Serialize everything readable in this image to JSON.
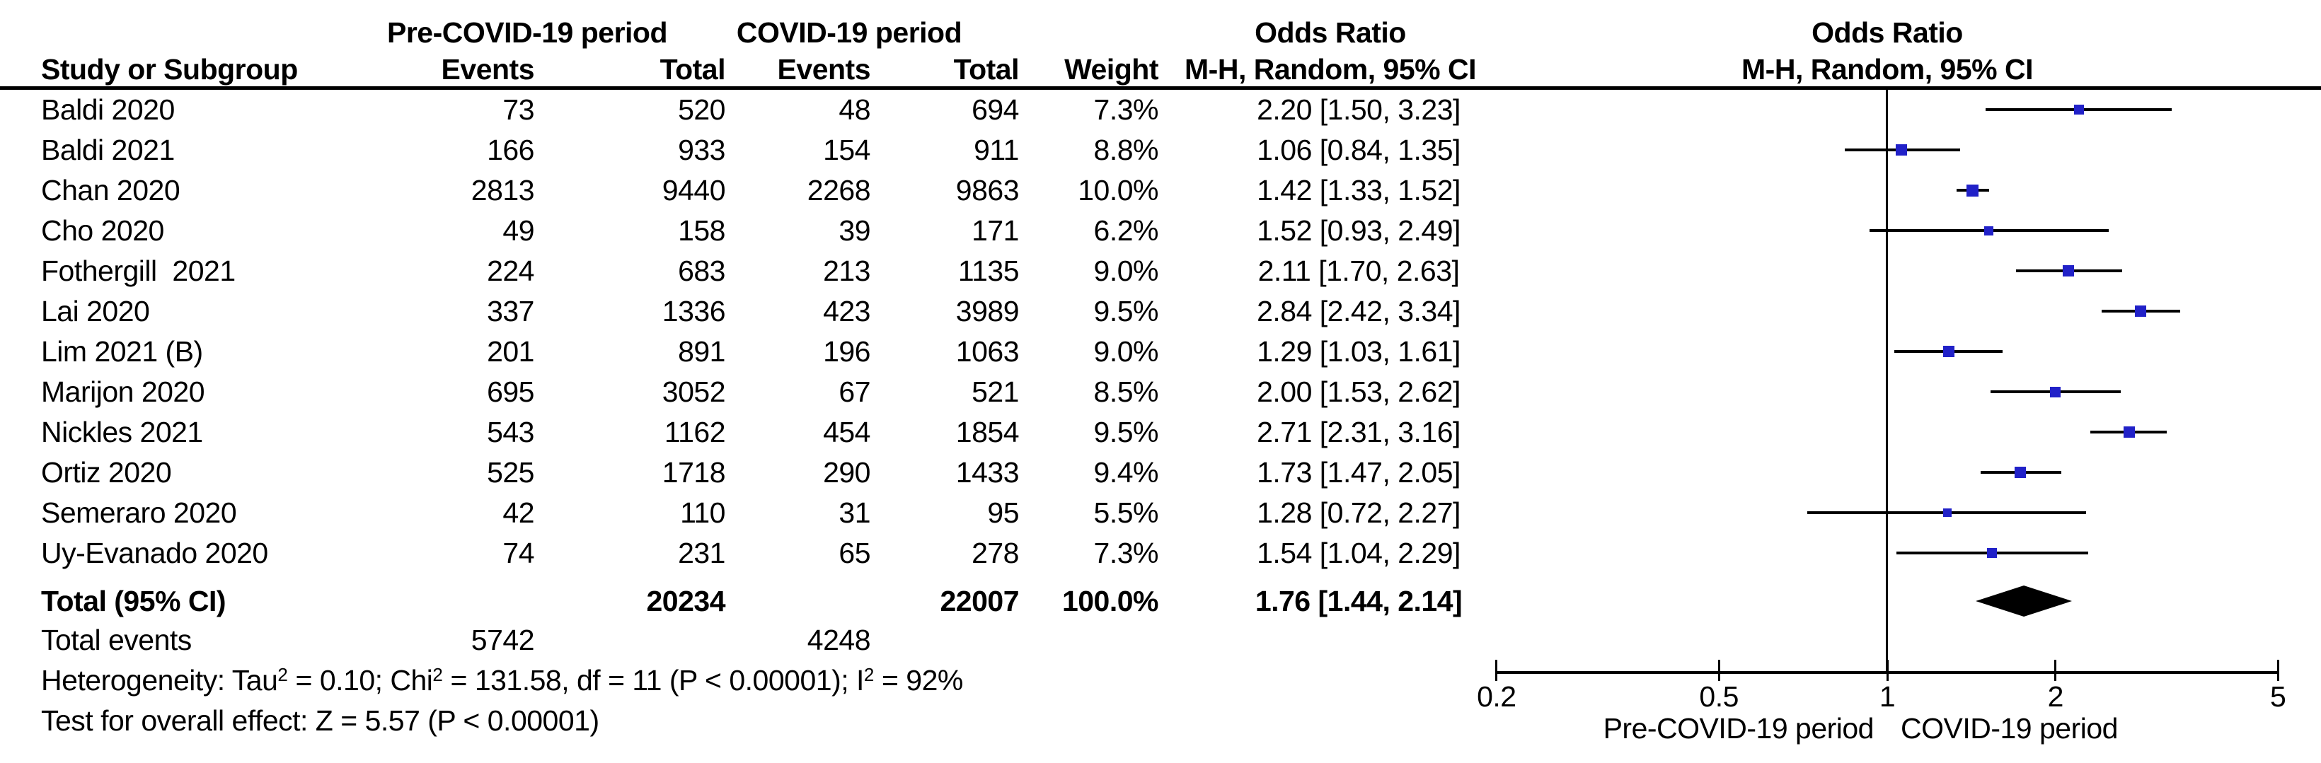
{
  "figure_title": "Forest plot: Odds Ratio, Pre-COVID-19 period vs COVID-19 period",
  "headers": {
    "study": "Study or Subgroup",
    "group_pre": "Pre-COVID-19 period",
    "group_covid": "COVID-19 period",
    "events": "Events",
    "total": "Total",
    "weight": "Weight",
    "or_title": "Odds Ratio",
    "or_method": "M-H, Random, 95% CI"
  },
  "table": {
    "studies": [
      {
        "study": "Baldi 2020",
        "pre_events": "73",
        "pre_total": "520",
        "covid_events": "48",
        "covid_total": "694",
        "weight": "7.3%",
        "or_ci": "2.20 [1.50, 3.23]"
      },
      {
        "study": "Baldi 2021",
        "pre_events": "166",
        "pre_total": "933",
        "covid_events": "154",
        "covid_total": "911",
        "weight": "8.8%",
        "or_ci": "1.06 [0.84, 1.35]"
      },
      {
        "study": "Chan 2020",
        "pre_events": "2813",
        "pre_total": "9440",
        "covid_events": "2268",
        "covid_total": "9863",
        "weight": "10.0%",
        "or_ci": "1.42 [1.33, 1.52]"
      },
      {
        "study": "Cho 2020",
        "pre_events": "49",
        "pre_total": "158",
        "covid_events": "39",
        "covid_total": "171",
        "weight": "6.2%",
        "or_ci": "1.52 [0.93, 2.49]"
      },
      {
        "study": "Fothergill  2021",
        "pre_events": "224",
        "pre_total": "683",
        "covid_events": "213",
        "covid_total": "1135",
        "weight": "9.0%",
        "or_ci": "2.11 [1.70, 2.63]"
      },
      {
        "study": "Lai 2020",
        "pre_events": "337",
        "pre_total": "1336",
        "covid_events": "423",
        "covid_total": "3989",
        "weight": "9.5%",
        "or_ci": "2.84 [2.42, 3.34]"
      },
      {
        "study": "Lim 2021 (B)",
        "pre_events": "201",
        "pre_total": "891",
        "covid_events": "196",
        "covid_total": "1063",
        "weight": "9.0%",
        "or_ci": "1.29 [1.03, 1.61]"
      },
      {
        "study": "Marijon 2020",
        "pre_events": "695",
        "pre_total": "3052",
        "covid_events": "67",
        "covid_total": "521",
        "weight": "8.5%",
        "or_ci": "2.00 [1.53, 2.62]"
      },
      {
        "study": "Nickles 2021",
        "pre_events": "543",
        "pre_total": "1162",
        "covid_events": "454",
        "covid_total": "1854",
        "weight": "9.5%",
        "or_ci": "2.71 [2.31, 3.16]"
      },
      {
        "study": "Ortiz 2020",
        "pre_events": "525",
        "pre_total": "1718",
        "covid_events": "290",
        "covid_total": "1433",
        "weight": "9.4%",
        "or_ci": "1.73 [1.47, 2.05]"
      },
      {
        "study": "Semeraro 2020",
        "pre_events": "42",
        "pre_total": "110",
        "covid_events": "31",
        "covid_total": "95",
        "weight": "5.5%",
        "or_ci": "1.28 [0.72, 2.27]"
      },
      {
        "study": "Uy-Evanado 2020",
        "pre_events": "74",
        "pre_total": "231",
        "covid_events": "65",
        "covid_total": "278",
        "weight": "7.3%",
        "or_ci": "1.54 [1.04, 2.29]"
      }
    ],
    "total_row": {
      "label": "Total (95% CI)",
      "pre_total": "20234",
      "covid_total": "22007",
      "weight": "100.0%",
      "or_ci": "1.76 [1.44, 2.14]"
    },
    "total_events": {
      "label": "Total events",
      "pre": "5742",
      "covid": "4248"
    },
    "heterogeneity_parts": [
      {
        "text": "Heterogeneity: Tau"
      },
      {
        "sup": "2"
      },
      {
        "text": " = 0.10; Chi"
      },
      {
        "sup": "2"
      },
      {
        "text": " = 131.58, df = 11 (P < 0.00001); I"
      },
      {
        "sup": "2"
      },
      {
        "text": " = 92%"
      }
    ],
    "overall_effect": "Test for overall effect: Z = 5.57 (P < 0.00001)"
  },
  "chart_data": {
    "type": "forest",
    "title": "Odds Ratio",
    "method": "M-H, Random, 95% CI",
    "x_scale": "log10",
    "x_ticks": [
      0.2,
      0.5,
      1,
      2,
      5
    ],
    "xlim": [
      0.2,
      5
    ],
    "null_line": 1,
    "axis_label_left": "Pre-COVID-19 period",
    "axis_label_right": "COVID-19 period",
    "marker_color": "#2121c8",
    "studies": [
      {
        "name": "Baldi 2020",
        "or": 2.2,
        "ci_low": 1.5,
        "ci_high": 3.23,
        "weight_pct": 7.3
      },
      {
        "name": "Baldi 2021",
        "or": 1.06,
        "ci_low": 0.84,
        "ci_high": 1.35,
        "weight_pct": 8.8
      },
      {
        "name": "Chan 2020",
        "or": 1.42,
        "ci_low": 1.33,
        "ci_high": 1.52,
        "weight_pct": 10.0
      },
      {
        "name": "Cho 2020",
        "or": 1.52,
        "ci_low": 0.93,
        "ci_high": 2.49,
        "weight_pct": 6.2
      },
      {
        "name": "Fothergill  2021",
        "or": 2.11,
        "ci_low": 1.7,
        "ci_high": 2.63,
        "weight_pct": 9.0
      },
      {
        "name": "Lai 2020",
        "or": 2.84,
        "ci_low": 2.42,
        "ci_high": 3.34,
        "weight_pct": 9.5
      },
      {
        "name": "Lim 2021 (B)",
        "or": 1.29,
        "ci_low": 1.03,
        "ci_high": 1.61,
        "weight_pct": 9.0
      },
      {
        "name": "Marijon 2020",
        "or": 2.0,
        "ci_low": 1.53,
        "ci_high": 2.62,
        "weight_pct": 8.5
      },
      {
        "name": "Nickles 2021",
        "or": 2.71,
        "ci_low": 2.31,
        "ci_high": 3.16,
        "weight_pct": 9.5
      },
      {
        "name": "Ortiz 2020",
        "or": 1.73,
        "ci_low": 1.47,
        "ci_high": 2.05,
        "weight_pct": 9.4
      },
      {
        "name": "Semeraro 2020",
        "or": 1.28,
        "ci_low": 0.72,
        "ci_high": 2.27,
        "weight_pct": 5.5
      },
      {
        "name": "Uy-Evanado 2020",
        "or": 1.54,
        "ci_low": 1.04,
        "ci_high": 2.29,
        "weight_pct": 7.3
      }
    ],
    "total": {
      "name": "Total (95% CI)",
      "or": 1.76,
      "ci_low": 1.44,
      "ci_high": 2.14,
      "weight_pct": 100.0
    }
  }
}
